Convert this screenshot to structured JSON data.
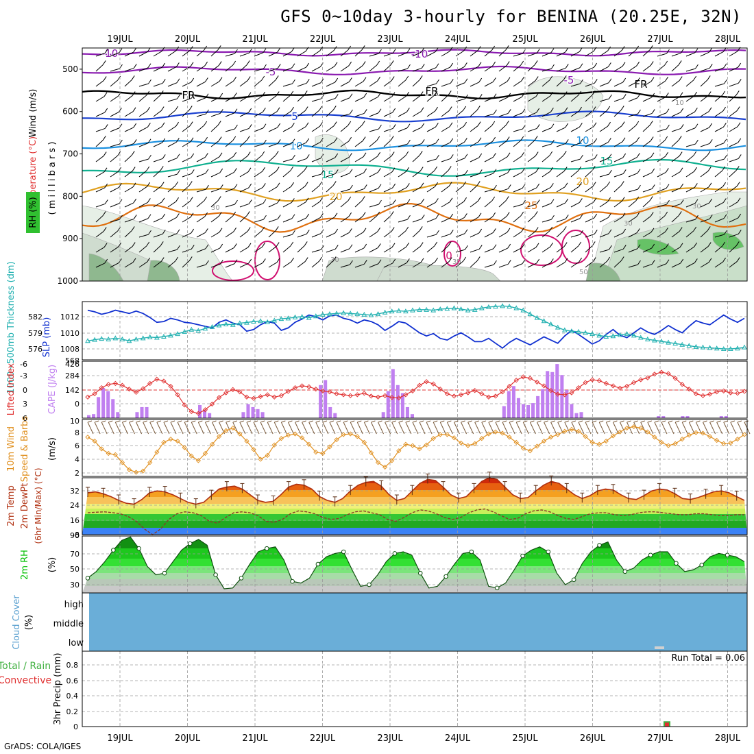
{
  "title": "GFS 0~10day 3-hourly for BENINA (20.25E, 32N)",
  "footer": "GrADS: COLA/IGES",
  "days": [
    "19JUL",
    "20JUL",
    "21JUL",
    "22JUL",
    "23JUL",
    "24JUL",
    "25JUL",
    "26JUL",
    "27JUL",
    "28JUL"
  ],
  "colors": {
    "temp_label": "#e03030",
    "wind_label": "#000000",
    "rh_label": "#00a000",
    "slp": "#1030d0",
    "thickness": "#20b0b0",
    "lifted_index": "#e03030",
    "cape": "#c080f0",
    "wind10": "#e09020",
    "temp2m": "#b03010",
    "dewpt": "#808080",
    "rh2m": "#00c000",
    "cloud": "#6aaed8",
    "precip_total": "#40b040",
    "precip_conv": "#e03030"
  },
  "panels": {
    "upper": {
      "ylabel_parts": [
        "RH (%)",
        "Temperature (°C)",
        "Wind (m/s)"
      ],
      "ylabel_right": "( m i l l i b a r s )",
      "levels": [
        "500",
        "600",
        "700",
        "800",
        "900",
        "1000"
      ],
      "contour_labels": [
        "-10",
        "-10",
        "-5",
        "-5",
        "FR",
        "FR",
        "FR",
        "5",
        "10",
        "10",
        "15",
        "15",
        "20",
        "20",
        "25",
        "0"
      ],
      "rh_labels": [
        "30",
        "30",
        "30",
        "30",
        "30",
        "50",
        "10"
      ]
    },
    "slp": {
      "ylabel_left": "1000~500mb Thickness (dm)",
      "ylabel_right": "SLP (mb)",
      "thickness_ticks": [
        "582",
        "579",
        "576"
      ],
      "slp_ticks": [
        "1012",
        "1010",
        "1008"
      ]
    },
    "cape": {
      "ylabel_left": "Lifted Index",
      "ylabel_right": "CAPE (J/kg)",
      "li_ticks": [
        "-6",
        "-3",
        "0",
        "3",
        "6"
      ],
      "cape_ticks": [
        "568",
        "426",
        "284",
        "142",
        "0"
      ]
    },
    "wind10": {
      "ylabel_left": "10m Wind",
      "ylabel_mid": "Speed & Barbs",
      "ylabel_right": "(m/s)",
      "ticks": [
        "10",
        "8",
        "6",
        "4",
        "2"
      ]
    },
    "temp2m": {
      "ylabel_left": "2m Temp",
      "ylabel_mid": "2m DewPt",
      "ylabel_right": "(6hr Min/Max) (°C)",
      "ticks": [
        "32",
        "24",
        "16",
        "8"
      ]
    },
    "rh2m": {
      "ylabel_left": "2m RH",
      "ylabel_right": "(%)",
      "ticks": [
        "90",
        "70",
        "50",
        "30"
      ]
    },
    "cloud": {
      "ylabel_left": "Cloud Cover",
      "ylabel_right": "(%)",
      "levels": [
        "high",
        "middle",
        "low"
      ]
    },
    "precip": {
      "ylabel_left": "Total / Rain",
      "ylabel_left2": "Convective",
      "ylabel_right": "3hr Precip (mm)",
      "ticks": [
        "0.8",
        "0.6",
        "0.4",
        "0.2",
        "0"
      ],
      "run_total": "Run Total = 0.06"
    }
  },
  "chart_data": [
    {
      "type": "line",
      "title": "1000~500mb Thickness (dm) / SLP (mb)",
      "x_unit": "3-hourly steps",
      "series": [
        {
          "name": "SLP (mb)",
          "values": [
            1012.8,
            1012.6,
            1012.3,
            1012.5,
            1012.8,
            1012.6,
            1012.4,
            1012.7,
            1012.4,
            1011.9,
            1011.3,
            1011.4,
            1011.8,
            1011.6,
            1011.3,
            1011.2,
            1011.0,
            1010.8,
            1010.6,
            1011.3,
            1011.6,
            1011.2,
            1011.0,
            1010.2,
            1010.4,
            1011.0,
            1011.4,
            1011.2,
            1010.3,
            1010.6,
            1011.3,
            1011.7,
            1012.2,
            1012.0,
            1011.6,
            1012.1,
            1012.2,
            1011.8,
            1011.6,
            1011.2,
            1011.6,
            1011.4,
            1011.0,
            1010.3,
            1010.8,
            1011.4,
            1011.2,
            1010.6,
            1010.0,
            1009.6,
            1009.9,
            1009.3,
            1009.1,
            1009.6,
            1010.0,
            1009.5,
            1008.9,
            1008.9,
            1009.3,
            1008.7,
            1008.1,
            1008.8,
            1009.3,
            1008.9,
            1008.5,
            1009.0,
            1009.5,
            1009.1,
            1008.7,
            1009.6,
            1010.3,
            1009.8,
            1009.2,
            1008.6,
            1009.0,
            1009.8,
            1010.4,
            1009.7,
            1009.4,
            1010.0,
            1010.6,
            1010.1,
            1009.8,
            1010.3,
            1010.9,
            1010.4,
            1010.0,
            1010.8,
            1011.5,
            1011.2,
            1011.0,
            1011.6,
            1012.2,
            1011.7,
            1011.3,
            1011.8
          ]
        },
        {
          "name": "1000~500mb Thickness (dm)",
          "values": [
            577.5,
            577.7,
            577.9,
            577.8,
            578.0,
            577.8,
            577.5,
            577.8,
            578.0,
            578.2,
            578.1,
            578.3,
            578.5,
            578.8,
            579.2,
            579.6,
            579.4,
            579.8,
            580.1,
            580.4,
            580.6,
            580.5,
            580.8,
            580.9,
            581.1,
            581.2,
            581.0,
            581.3,
            581.6,
            581.7,
            581.9,
            582.0,
            581.8,
            582.1,
            582.4,
            582.5,
            582.6,
            582.7,
            582.6,
            582.5,
            582.4,
            582.3,
            582.5,
            582.8,
            583.0,
            583.1,
            583.0,
            583.2,
            583.3,
            583.3,
            583.2,
            583.4,
            583.5,
            583.6,
            583.4,
            583.2,
            583.3,
            583.6,
            583.8,
            583.9,
            584.0,
            583.9,
            583.6,
            583.2,
            582.5,
            581.8,
            581.2,
            580.6,
            580.0,
            579.5,
            579.3,
            579.2,
            579.0,
            578.8,
            578.5,
            578.3,
            578.4,
            578.6,
            578.8,
            578.5,
            578.1,
            577.8,
            577.6,
            577.4,
            577.2,
            577.0,
            576.8,
            576.6,
            576.4,
            576.3,
            576.2,
            576.1,
            576.0,
            576.0,
            576.1,
            576.3
          ]
        }
      ],
      "y_ticks_left": [
        576,
        579,
        582
      ],
      "y_ticks_right": [
        1008,
        1010,
        1012
      ]
    },
    {
      "type": "bar",
      "title": "Lifted Index / CAPE (J/kg)",
      "series": [
        {
          "name": "CAPE (J/kg)",
          "values": [
            30,
            40,
            210,
            300,
            270,
            190,
            60,
            0,
            0,
            0,
            60,
            110,
            110,
            0,
            0,
            0,
            0,
            0,
            0,
            0,
            0,
            0,
            0,
            130,
            80,
            50,
            0,
            0,
            0,
            0,
            0,
            0,
            60,
            140,
            110,
            90,
            60,
            0,
            0,
            0,
            0,
            0,
            0,
            0,
            0,
            0,
            0,
            0,
            330,
            380,
            110,
            50,
            0,
            0,
            0,
            0,
            0,
            0,
            0,
            0,
            0,
            60,
            270,
            490,
            330,
            250,
            110,
            40,
            0,
            0,
            0,
            0,
            0,
            0,
            0,
            0,
            0,
            0,
            0,
            0,
            0,
            0,
            0,
            0,
            0,
            0,
            120,
            270,
            320,
            200,
            140,
            130,
            150,
            220,
            290,
            470,
            460,
            540,
            430,
            280,
            140,
            50,
            60,
            0,
            0,
            0,
            0,
            0,
            0,
            0,
            0,
            0,
            0,
            0,
            0,
            0,
            0,
            0,
            20,
            20,
            0,
            0,
            0,
            20,
            20,
            0,
            0,
            0,
            0,
            0,
            0,
            20,
            20,
            0,
            0,
            0
          ]
        },
        {
          "name": "Lifted Index",
          "values": [
            1.5,
            0.8,
            -0.5,
            -1.2,
            -1.4,
            -1.0,
            -0.2,
            0.5,
            -0.3,
            -1.4,
            -2.3,
            -1.9,
            -0.8,
            1.0,
            3.2,
            4.6,
            5.0,
            4.2,
            3.0,
            1.6,
            0.6,
            -0.1,
            0.4,
            1.5,
            1.8,
            1.4,
            1.0,
            1.5,
            1.2,
            0.3,
            -0.5,
            -0.9,
            -0.7,
            -0.2,
            0.2,
            0.4,
            0.8,
            1.0,
            1.2,
            1.0,
            0.7,
            1.3,
            1.5,
            1.2,
            1.6,
            1.7,
            1.0,
            0.2,
            -1.0,
            -1.8,
            -1.3,
            -0.2,
            0.8,
            1.3,
            1.0,
            0.6,
            0.1,
            0.8,
            1.5,
            1.3,
            0.4,
            -0.8,
            -2.1,
            -2.8,
            -2.5,
            -1.7,
            -0.9,
            0.1,
            0.9,
            1.0,
            0.6,
            -0.5,
            -1.6,
            -2.2,
            -2.0,
            -1.4,
            -0.9,
            -0.4,
            -0.8,
            -1.6,
            -2.2,
            -2.6,
            -3.4,
            -3.8,
            -3.5,
            -2.5,
            -1.2,
            -0.2,
            0.8,
            1.2,
            0.9,
            0.4,
            0.2,
            0.6,
            0.7,
            0.3
          ]
        }
      ],
      "y_ticks_left": [
        -6,
        -3,
        0,
        3,
        6
      ],
      "y_ticks_right": [
        0,
        142,
        284,
        426,
        568
      ]
    },
    {
      "type": "line",
      "title": "10m Wind Speed & Barbs (m/s)",
      "series": [
        {
          "name": "10m Wind Speed (m/s)",
          "values": [
            7.5,
            6.9,
            5.7,
            5.0,
            4.8,
            3.6,
            2.5,
            2.1,
            2.3,
            3.6,
            5.2,
            6.7,
            7.2,
            6.9,
            5.9,
            4.6,
            3.9,
            5.0,
            6.4,
            7.6,
            8.5,
            8.9,
            8.0,
            6.9,
            5.6,
            4.1,
            4.7,
            6.3,
            7.3,
            7.8,
            8.0,
            7.4,
            6.4,
            5.2,
            5.0,
            6.0,
            7.1,
            7.9,
            8.0,
            7.6,
            6.7,
            5.1,
            3.6,
            2.9,
            3.9,
            5.4,
            6.4,
            6.2,
            5.7,
            6.3,
            7.3,
            7.9,
            7.9,
            7.4,
            6.6,
            6.2,
            6.5,
            7.3,
            8.0,
            8.3,
            8.1,
            7.5,
            6.7,
            5.8,
            5.4,
            6.1,
            6.9,
            7.5,
            7.9,
            8.4,
            8.7,
            8.4,
            7.6,
            6.7,
            6.4,
            6.9,
            7.7,
            8.3,
            8.9,
            9.1,
            8.9,
            8.3,
            7.5,
            6.7,
            6.2,
            6.5,
            7.2,
            7.8,
            8.2,
            8.1,
            7.6,
            7.0,
            6.5,
            6.6,
            7.2,
            7.9
          ]
        }
      ],
      "y_ticks": [
        2,
        4,
        6,
        8,
        10
      ]
    },
    {
      "type": "area",
      "title": "2m Temp / 2m DewPt (6hr Min/Max) (°C)",
      "series": [
        {
          "name": "2m Temp (°C)",
          "values": [
            30,
            30.5,
            29.5,
            28,
            26,
            24.5,
            24,
            26.5,
            30,
            31,
            30.5,
            29,
            27,
            25,
            24,
            25,
            28.5,
            32,
            33,
            33.5,
            32,
            29,
            26,
            25,
            25.5,
            29,
            33,
            34.5,
            34,
            32,
            28,
            26,
            25,
            27,
            31,
            34,
            35.5,
            36,
            33.5,
            29,
            26,
            27,
            31,
            35,
            37,
            36.5,
            33,
            29,
            27,
            28,
            32,
            36,
            38,
            37,
            33,
            29,
            27,
            27.5,
            31,
            34,
            36,
            35,
            32,
            29,
            27,
            28.5,
            31,
            32,
            31.5,
            29,
            27,
            26.5,
            28.5,
            31,
            32,
            31.5,
            29.5,
            27,
            26.5,
            27.5,
            29,
            30.5,
            31,
            30,
            28,
            26
          ]
        },
        {
          "name": "2m DewPt (°C)",
          "values": [
            19.5,
            19.8,
            20,
            19.6,
            19,
            17.5,
            15,
            11,
            8,
            11,
            16,
            19,
            20,
            19.5,
            18,
            15,
            14,
            17,
            19.5,
            20,
            19.5,
            18,
            15,
            14.5,
            16,
            19,
            20.5,
            20,
            19,
            17,
            16,
            16.5,
            18.5,
            20,
            20.5,
            19.5,
            18.5,
            16,
            15,
            17,
            19.5,
            21,
            20.5,
            19,
            17,
            16,
            17,
            19.5,
            21,
            21.5,
            20,
            18,
            16,
            16.5,
            19,
            20.5,
            21,
            20,
            18,
            16.5,
            16,
            17.5,
            19,
            19.5,
            19.5,
            18.5,
            18,
            18.5,
            19.5,
            20,
            20,
            19.5,
            19,
            18.5,
            18.5,
            19,
            19,
            18.5,
            18,
            18,
            18.5,
            18.5
          ]
        }
      ],
      "y_ticks": [
        8,
        16,
        24,
        32
      ]
    },
    {
      "type": "area",
      "title": "2m RH (%)",
      "series": [
        {
          "name": "2m RH (%)",
          "values": [
            38,
            46,
            58,
            72,
            84,
            88,
            74,
            52,
            42,
            44,
            58,
            72,
            80,
            85,
            78,
            42,
            25,
            26,
            38,
            55,
            70,
            74,
            76,
            60,
            34,
            32,
            38,
            55,
            64,
            68,
            70,
            48,
            28,
            30,
            42,
            58,
            68,
            70,
            66,
            44,
            26,
            28,
            40,
            55,
            68,
            70,
            60,
            28,
            26,
            32,
            48,
            65,
            72,
            76,
            70,
            44,
            30,
            36,
            56,
            70,
            78,
            82,
            60,
            46,
            50,
            60,
            66,
            70,
            70,
            56,
            46,
            48,
            54,
            64,
            68,
            66,
            64,
            58
          ]
        }
      ],
      "y_ticks": [
        30,
        50,
        70,
        90
      ]
    },
    {
      "type": "bar",
      "title": "3hr Precip (mm)",
      "series": [
        {
          "name": "Total / Rain",
          "values": [
            0.06
          ]
        },
        {
          "name": "Convective",
          "values": [
            0.06
          ]
        }
      ],
      "y_ticks": [
        0,
        0.2,
        0.4,
        0.6,
        0.8
      ]
    }
  ]
}
